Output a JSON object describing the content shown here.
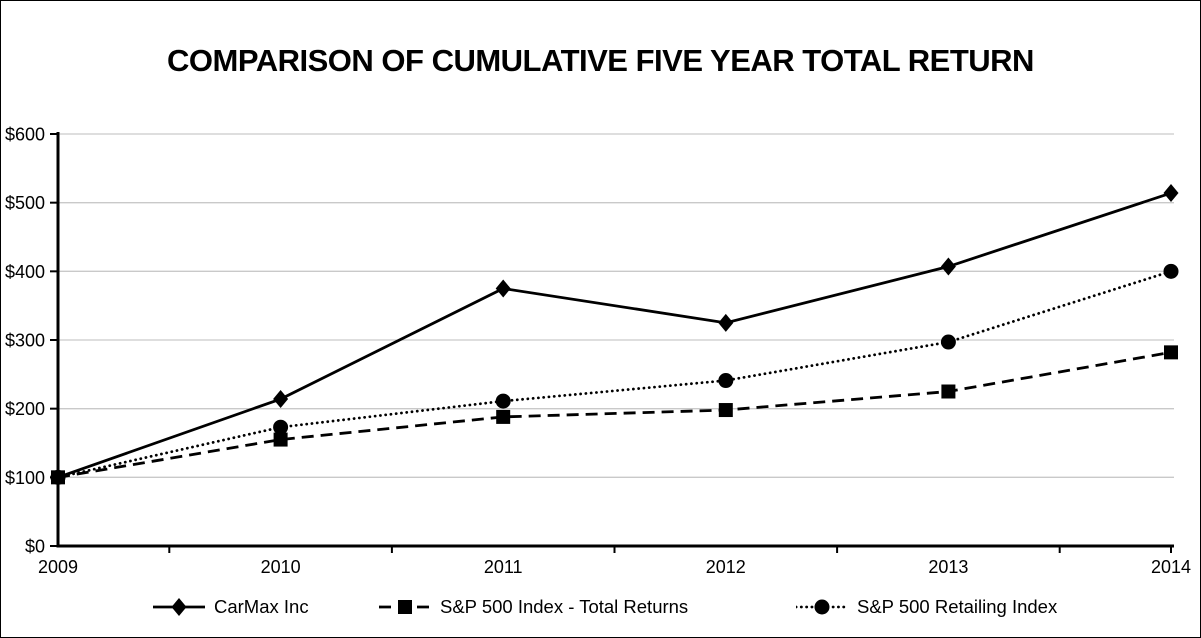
{
  "chart_data": {
    "type": "line",
    "title": "COMPARISON OF CUMULATIVE FIVE YEAR TOTAL RETURN",
    "categories": [
      "2009",
      "2010",
      "2011",
      "2012",
      "2013",
      "2014"
    ],
    "x": [
      2009,
      2010,
      2011,
      2012,
      2013,
      2014
    ],
    "xlabel": "",
    "ylabel": "",
    "ylim": [
      0,
      600
    ],
    "y_tick_step": 100,
    "y_tick_labels": [
      "$0",
      "$100",
      "$200",
      "$300",
      "$400",
      "$500",
      "$600"
    ],
    "grid": true,
    "legend_position": "bottom",
    "colors": {
      "series": "#000000",
      "gridline": "#c9c9c9",
      "axis": "#000000",
      "background": "#ffffff"
    },
    "series": [
      {
        "name": "CarMax Inc",
        "marker": "diamond",
        "line_style": "solid",
        "color": "#000000",
        "values": [
          100,
          214,
          375,
          325,
          407,
          514
        ]
      },
      {
        "name": "S&P 500 Index - Total Returns",
        "marker": "square",
        "line_style": "dashed",
        "color": "#000000",
        "values": [
          100,
          155,
          188,
          198,
          225,
          282
        ]
      },
      {
        "name": "S&P 500 Retailing Index",
        "marker": "circle",
        "line_style": "dotted",
        "color": "#000000",
        "values": [
          100,
          173,
          211,
          241,
          297,
          400
        ]
      }
    ]
  }
}
